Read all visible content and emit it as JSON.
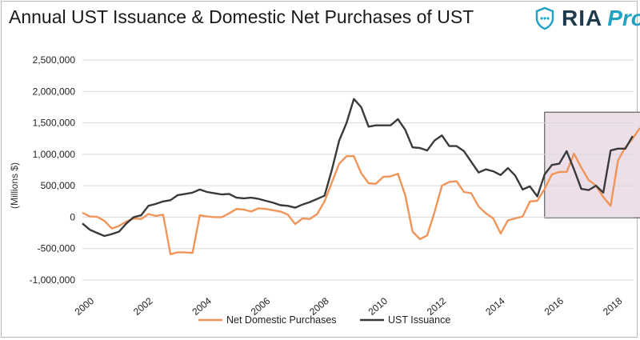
{
  "chart_data": {
    "type": "line",
    "title": "Annual UST Issuance & Domestic Net Purchases of UST",
    "xlabel": "",
    "ylabel": "(Millions $)",
    "ylim": [
      -1000000,
      2500000
    ],
    "xlim": [
      2000,
      2019
    ],
    "yticks": [
      2500000,
      2000000,
      1500000,
      1000000,
      500000,
      0,
      -500000,
      -1000000
    ],
    "ytick_labels": [
      "2,500,000",
      "2,000,000",
      "1,500,000",
      "1,000,000",
      "500,000",
      "0",
      "-500,000",
      "-1,000,000"
    ],
    "xtick_labels": [
      "2000",
      "2002",
      "2004",
      "2006",
      "2008",
      "2010",
      "2012",
      "2014",
      "2016",
      "2018"
    ],
    "grid": true,
    "legend_position": "bottom",
    "highlight_region": {
      "x_start": 2015.75,
      "x_end": 2019.25,
      "y_start": -10000,
      "y_end": 1670000,
      "color": "#ecdfe8"
    },
    "series": [
      {
        "name": "Net Domestic Purchases",
        "color": "#f0955a",
        "points": [
          [
            2000,
            70000
          ],
          [
            2000.25,
            10000
          ],
          [
            2000.5,
            5000
          ],
          [
            2000.75,
            -60000
          ],
          [
            2001,
            -180000
          ],
          [
            2001.25,
            -140000
          ],
          [
            2001.5,
            -70000
          ],
          [
            2001.75,
            -20000
          ],
          [
            2002,
            -30000
          ],
          [
            2002.25,
            50000
          ],
          [
            2002.5,
            20000
          ],
          [
            2002.75,
            40000
          ],
          [
            2003,
            -590000
          ],
          [
            2003.25,
            -560000
          ],
          [
            2003.5,
            -560000
          ],
          [
            2003.75,
            -570000
          ],
          [
            2004,
            30000
          ],
          [
            2004.25,
            10000
          ],
          [
            2004.5,
            0
          ],
          [
            2004.75,
            0
          ],
          [
            2005,
            60000
          ],
          [
            2005.25,
            130000
          ],
          [
            2005.5,
            120000
          ],
          [
            2005.75,
            90000
          ],
          [
            2006,
            140000
          ],
          [
            2006.25,
            130000
          ],
          [
            2006.5,
            110000
          ],
          [
            2006.75,
            90000
          ],
          [
            2007,
            40000
          ],
          [
            2007.25,
            -110000
          ],
          [
            2007.5,
            -20000
          ],
          [
            2007.75,
            -30000
          ],
          [
            2008,
            50000
          ],
          [
            2008.25,
            250000
          ],
          [
            2008.5,
            550000
          ],
          [
            2008.75,
            850000
          ],
          [
            2009,
            970000
          ],
          [
            2009.25,
            970000
          ],
          [
            2009.5,
            700000
          ],
          [
            2009.75,
            540000
          ],
          [
            2010,
            530000
          ],
          [
            2010.25,
            640000
          ],
          [
            2010.5,
            650000
          ],
          [
            2010.75,
            690000
          ],
          [
            2011,
            350000
          ],
          [
            2011.25,
            -230000
          ],
          [
            2011.5,
            -350000
          ],
          [
            2011.75,
            -290000
          ],
          [
            2012,
            80000
          ],
          [
            2012.25,
            500000
          ],
          [
            2012.5,
            560000
          ],
          [
            2012.75,
            570000
          ],
          [
            2013,
            400000
          ],
          [
            2013.25,
            380000
          ],
          [
            2013.5,
            170000
          ],
          [
            2013.75,
            60000
          ],
          [
            2014,
            -20000
          ],
          [
            2014.25,
            -260000
          ],
          [
            2014.5,
            -50000
          ],
          [
            2014.75,
            -20000
          ],
          [
            2015,
            10000
          ],
          [
            2015.25,
            250000
          ],
          [
            2015.5,
            260000
          ],
          [
            2015.75,
            450000
          ],
          [
            2016,
            680000
          ],
          [
            2016.25,
            720000
          ],
          [
            2016.5,
            720000
          ],
          [
            2016.75,
            1010000
          ],
          [
            2017,
            790000
          ],
          [
            2017.25,
            590000
          ],
          [
            2017.5,
            500000
          ],
          [
            2017.75,
            320000
          ],
          [
            2018,
            180000
          ],
          [
            2018.25,
            900000
          ],
          [
            2018.5,
            1110000
          ],
          [
            2018.75,
            1250000
          ],
          [
            2019,
            1420000
          ]
        ]
      },
      {
        "name": "UST Issuance",
        "color": "#3a3a3a",
        "points": [
          [
            2000,
            -100000
          ],
          [
            2000.25,
            -200000
          ],
          [
            2000.5,
            -250000
          ],
          [
            2000.75,
            -300000
          ],
          [
            2001,
            -270000
          ],
          [
            2001.25,
            -230000
          ],
          [
            2001.5,
            -100000
          ],
          [
            2001.75,
            0
          ],
          [
            2002,
            30000
          ],
          [
            2002.25,
            180000
          ],
          [
            2002.5,
            210000
          ],
          [
            2002.75,
            250000
          ],
          [
            2003,
            270000
          ],
          [
            2003.25,
            350000
          ],
          [
            2003.5,
            370000
          ],
          [
            2003.75,
            390000
          ],
          [
            2004,
            440000
          ],
          [
            2004.25,
            400000
          ],
          [
            2004.5,
            380000
          ],
          [
            2004.75,
            360000
          ],
          [
            2005,
            370000
          ],
          [
            2005.25,
            310000
          ],
          [
            2005.5,
            300000
          ],
          [
            2005.75,
            310000
          ],
          [
            2006,
            290000
          ],
          [
            2006.25,
            260000
          ],
          [
            2006.5,
            230000
          ],
          [
            2006.75,
            190000
          ],
          [
            2007,
            180000
          ],
          [
            2007.25,
            150000
          ],
          [
            2007.5,
            200000
          ],
          [
            2007.75,
            240000
          ],
          [
            2008,
            290000
          ],
          [
            2008.25,
            340000
          ],
          [
            2008.5,
            750000
          ],
          [
            2008.75,
            1220000
          ],
          [
            2009,
            1500000
          ],
          [
            2009.25,
            1880000
          ],
          [
            2009.5,
            1750000
          ],
          [
            2009.75,
            1440000
          ],
          [
            2010,
            1460000
          ],
          [
            2010.25,
            1460000
          ],
          [
            2010.5,
            1460000
          ],
          [
            2010.75,
            1560000
          ],
          [
            2011,
            1390000
          ],
          [
            2011.25,
            1110000
          ],
          [
            2011.5,
            1100000
          ],
          [
            2011.75,
            1060000
          ],
          [
            2012,
            1220000
          ],
          [
            2012.25,
            1300000
          ],
          [
            2012.5,
            1130000
          ],
          [
            2012.75,
            1130000
          ],
          [
            2013,
            1050000
          ],
          [
            2013.25,
            880000
          ],
          [
            2013.5,
            710000
          ],
          [
            2013.75,
            760000
          ],
          [
            2014,
            730000
          ],
          [
            2014.25,
            670000
          ],
          [
            2014.5,
            780000
          ],
          [
            2014.75,
            660000
          ],
          [
            2015,
            440000
          ],
          [
            2015.25,
            490000
          ],
          [
            2015.5,
            330000
          ],
          [
            2015.75,
            680000
          ],
          [
            2016,
            830000
          ],
          [
            2016.25,
            850000
          ],
          [
            2016.5,
            1050000
          ],
          [
            2016.75,
            760000
          ],
          [
            2017,
            450000
          ],
          [
            2017.25,
            430000
          ],
          [
            2017.5,
            500000
          ],
          [
            2017.75,
            390000
          ],
          [
            2018,
            1060000
          ],
          [
            2018.25,
            1090000
          ],
          [
            2018.5,
            1090000
          ],
          [
            2018.75,
            1290000
          ]
        ]
      }
    ]
  },
  "logo": {
    "brand": "RIA",
    "suffix": "Pro"
  }
}
